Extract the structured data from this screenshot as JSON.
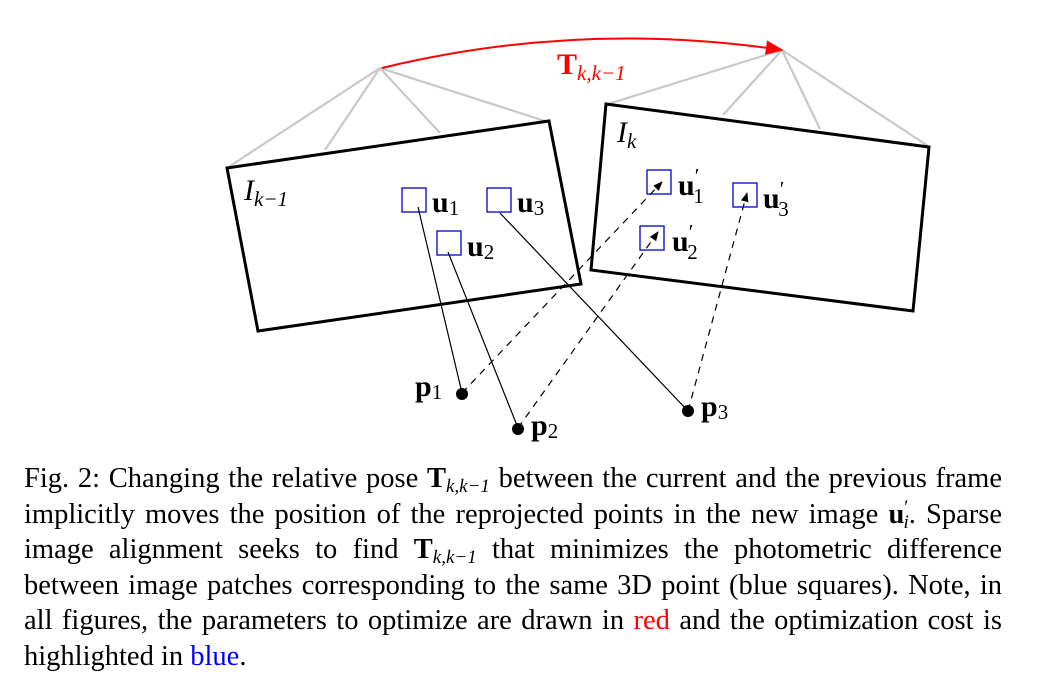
{
  "figure": {
    "transform_label_main": "T",
    "transform_label_sub": "k,k−1",
    "prev_frame_label_main": "I",
    "prev_frame_label_sub": "k−1",
    "curr_frame_label_main": "I",
    "curr_frame_label_sub": "k",
    "patch_labels": [
      {
        "main": "u",
        "sub": "1"
      },
      {
        "main": "u",
        "sub": "2"
      },
      {
        "main": "u",
        "sub": "3"
      }
    ],
    "reprojected_labels": [
      {
        "main": "u",
        "prime": "′",
        "sub": "1"
      },
      {
        "main": "u",
        "prime": "′",
        "sub": "2"
      },
      {
        "main": "u",
        "prime": "′",
        "sub": "3"
      }
    ],
    "point_labels": [
      {
        "main": "p",
        "sub": "1"
      },
      {
        "main": "p",
        "sub": "2"
      },
      {
        "main": "p",
        "sub": "3"
      }
    ],
    "colors": {
      "transform": "#ff0000",
      "patch": "#0000cc",
      "camera_rays": "#c8c8c8",
      "frame": "#000000"
    }
  },
  "caption": {
    "prefix": "Fig. 2: Changing the relative pose ",
    "T_main": "T",
    "T_sub": "k,k−1",
    "part1": " between the current and the previous frame implicitly moves the position of the reprojected points in the new image ",
    "u_main": "u",
    "u_sup": "′",
    "u_sub": "i",
    "part2": ". Sparse image alignment seeks to find ",
    "T2_main": "T",
    "T2_sub": "k,k−1",
    "part3": " that minimizes the photometric difference between image patches corresponding to the same 3D point (blue squares). Note, in all figures, the parameters to optimize are drawn in ",
    "red_word": "red",
    "part4": " and the optimization cost is highlighted in ",
    "blue_word": "blue",
    "suffix": "."
  }
}
